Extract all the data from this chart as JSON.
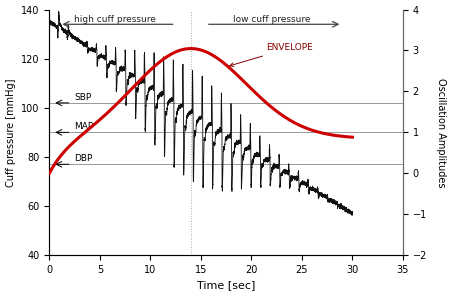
{
  "title": "",
  "xlabel": "Time [sec]",
  "ylabel_left": "Cuff pressure [mmHg]",
  "ylabel_right": "Oscillation Amplitudes",
  "xlim": [
    0,
    35
  ],
  "ylim_left": [
    40,
    140
  ],
  "ylim_right": [
    -2,
    4
  ],
  "sbp": 102,
  "map_val": 90,
  "dbp": 77,
  "divider_t": 14,
  "background_color": "#ffffff",
  "cuff_line_color": "#111111",
  "envelope_color": "#cc0000"
}
